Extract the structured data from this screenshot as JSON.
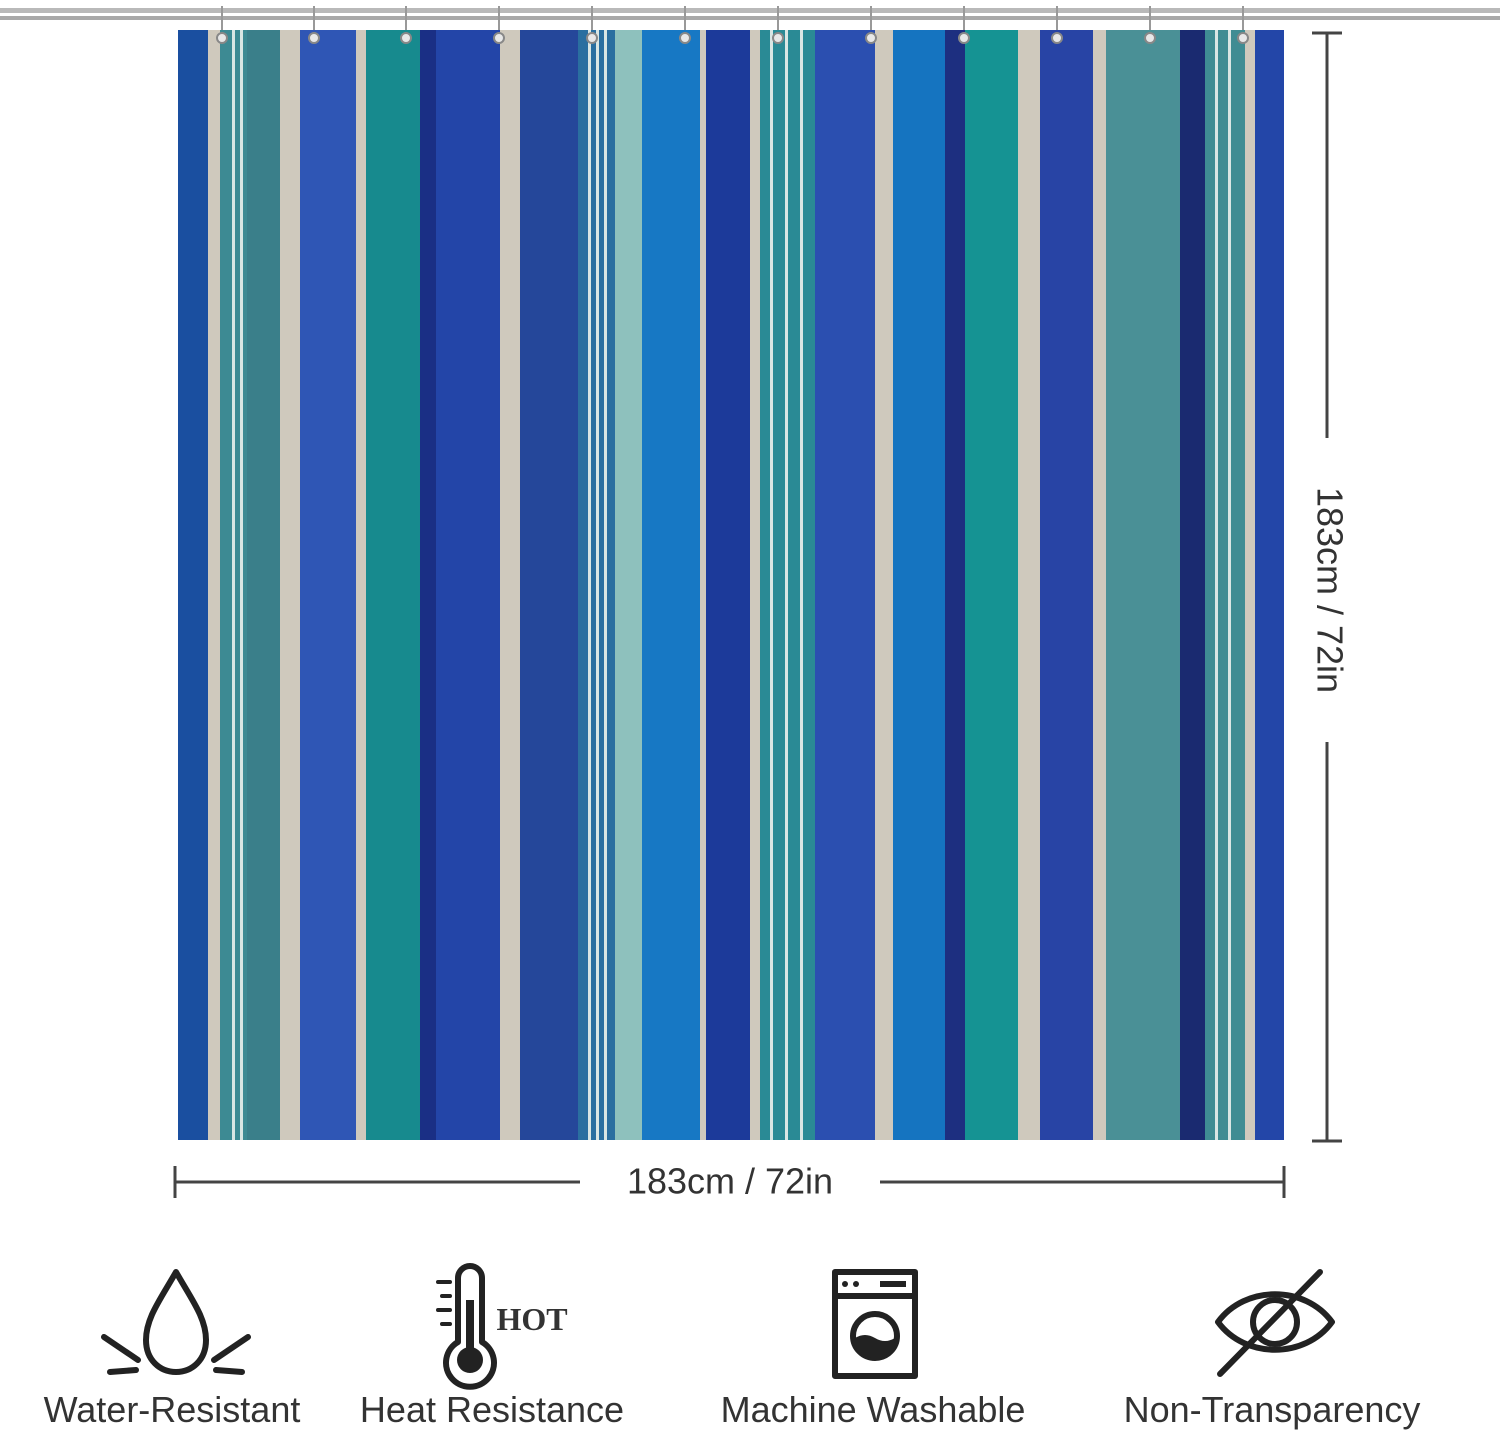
{
  "dimensions": {
    "height": "183cm / 72in",
    "width": "183cm / 72in"
  },
  "features": [
    {
      "label": "Water-Resistant"
    },
    {
      "label": "Heat Resistance",
      "badge": "HOT"
    },
    {
      "label": "Machine Washable"
    },
    {
      "label": "Non-Transparency"
    }
  ]
}
